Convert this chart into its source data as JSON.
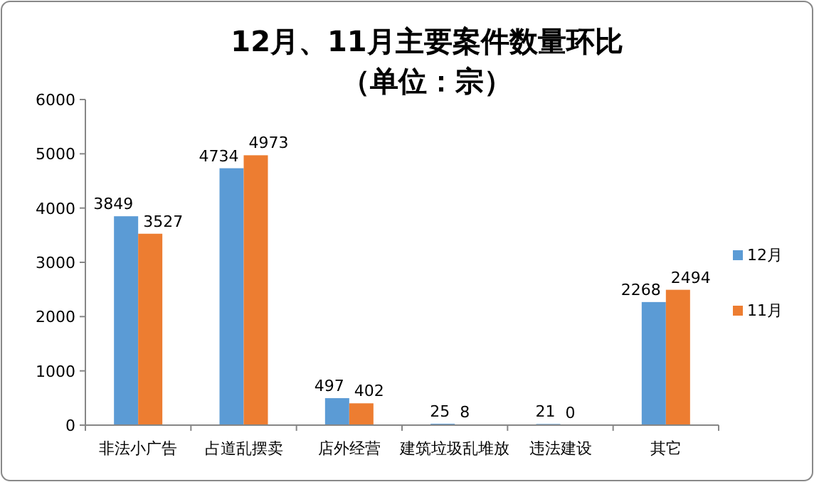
{
  "chart_data": {
    "type": "bar",
    "title": "12月、11月主要案件数量环比",
    "subtitle": "（单位：宗）",
    "categories": [
      "非法小广告",
      "占道乱摆卖",
      "店外经营",
      "建筑垃圾乱堆放",
      "违法建设",
      "其它"
    ],
    "series": [
      {
        "name": "12月",
        "color": "#5b9bd5",
        "values": [
          3849,
          4734,
          497,
          25,
          21,
          2268
        ]
      },
      {
        "name": "11月",
        "color": "#ed7d31",
        "values": [
          3527,
          4973,
          402,
          8,
          0,
          2494
        ]
      }
    ],
    "ylim": [
      0,
      6000
    ],
    "yticks": [
      0,
      1000,
      2000,
      3000,
      4000,
      5000,
      6000
    ],
    "data_labels": true,
    "legend": "right",
    "grid": false
  }
}
